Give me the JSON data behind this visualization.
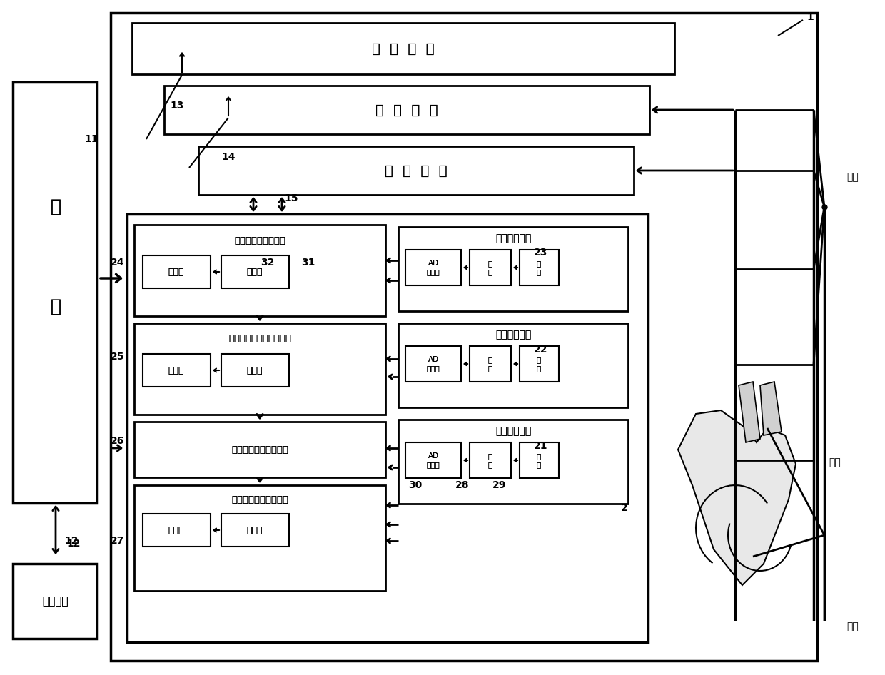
{
  "bg_color": "#ffffff",
  "line_color": "#000000",
  "labels": {
    "tongxun": "通  讯  电  路",
    "ganzhi": "感  知  电  路",
    "qibo": "起  搊  电  路",
    "dian": "电",
    "chi": "池",
    "dianyuanguanli": "电源管理",
    "xinbo_title": "心捯稳定性检测模块",
    "shijishi": "计时器",
    "bijiao": "比较器",
    "shijian_title": "室间传导稳定性检测模块",
    "zuozhuan_title": "左室起搊脆冲产生模块",
    "zuozhuan2_title": "左室起搊夒获检测模块",
    "youshi_title": "右室心电采集",
    "youfang_title": "右房心电采集",
    "zuoshi_title": "左室心电采集",
    "AD": "AD\n转换器",
    "fangda": "放\n大",
    "lvbo": "滤\n波",
    "youfang": "右房",
    "zuoshi": "左室",
    "youshi": "右室"
  },
  "lw_thick": 2.5,
  "lw_med": 2.0,
  "lw_thin": 1.5
}
